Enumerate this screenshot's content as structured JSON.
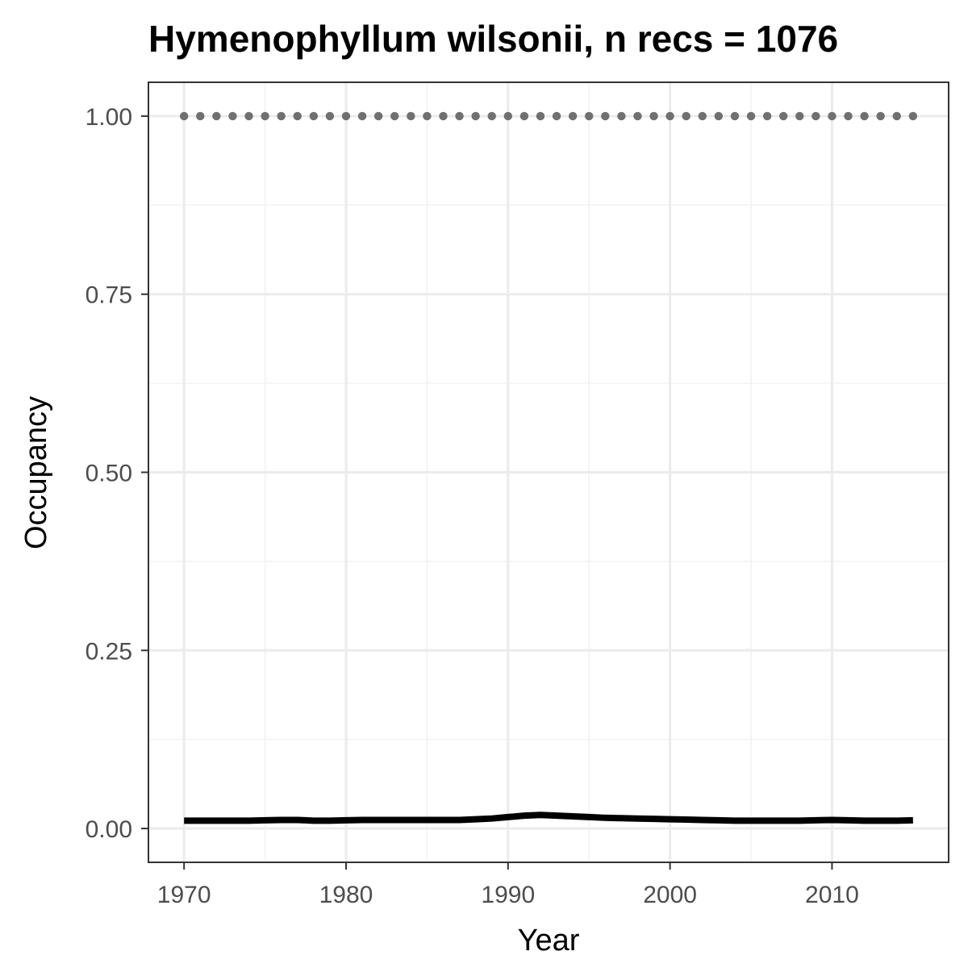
{
  "chart_data": {
    "type": "line",
    "title": "Hymenophyllum wilsonii, n recs = 1076",
    "xlabel": "Year",
    "ylabel": "Occupancy",
    "xlim": [
      1967.8,
      2017.2
    ],
    "ylim": [
      -0.0475,
      1.0475
    ],
    "x_ticks": [
      1970,
      1980,
      1990,
      2000,
      2010
    ],
    "y_ticks": [
      0.0,
      0.25,
      0.5,
      0.75,
      1.0
    ],
    "x_tick_labels": [
      "1970",
      "1980",
      "1990",
      "2000",
      "2010"
    ],
    "y_tick_labels": [
      "0.00",
      "0.25",
      "0.50",
      "0.75",
      "1.00"
    ],
    "grid": true,
    "series": [
      {
        "style": "solid",
        "color": "#000000",
        "x": [
          1970,
          1971,
          1972,
          1973,
          1974,
          1975,
          1976,
          1977,
          1978,
          1979,
          1980,
          1981,
          1982,
          1983,
          1984,
          1985,
          1986,
          1987,
          1988,
          1989,
          1990,
          1991,
          1992,
          1993,
          1994,
          1995,
          1996,
          1997,
          1998,
          1999,
          2000,
          2001,
          2002,
          2003,
          2004,
          2005,
          2006,
          2007,
          2008,
          2009,
          2010,
          2011,
          2012,
          2013,
          2014,
          2015
        ],
        "y": [
          0.011,
          0.011,
          0.011,
          0.011,
          0.011,
          0.0115,
          0.012,
          0.012,
          0.011,
          0.011,
          0.0115,
          0.012,
          0.012,
          0.012,
          0.012,
          0.012,
          0.012,
          0.012,
          0.013,
          0.014,
          0.016,
          0.018,
          0.019,
          0.018,
          0.017,
          0.016,
          0.015,
          0.0145,
          0.014,
          0.0135,
          0.013,
          0.0125,
          0.012,
          0.0115,
          0.011,
          0.011,
          0.011,
          0.011,
          0.011,
          0.0115,
          0.012,
          0.0115,
          0.011,
          0.011,
          0.011,
          0.0115
        ]
      },
      {
        "style": "dotted",
        "color": "#707070",
        "x": [
          1970,
          1971,
          1972,
          1973,
          1974,
          1975,
          1976,
          1977,
          1978,
          1979,
          1980,
          1981,
          1982,
          1983,
          1984,
          1985,
          1986,
          1987,
          1988,
          1989,
          1990,
          1991,
          1992,
          1993,
          1994,
          1995,
          1996,
          1997,
          1998,
          1999,
          2000,
          2001,
          2002,
          2003,
          2004,
          2005,
          2006,
          2007,
          2008,
          2009,
          2010,
          2011,
          2012,
          2013,
          2014,
          2015
        ],
        "y": [
          1,
          1,
          1,
          1,
          1,
          1,
          1,
          1,
          1,
          1,
          1,
          1,
          1,
          1,
          1,
          1,
          1,
          1,
          1,
          1,
          1,
          1,
          1,
          1,
          1,
          1,
          1,
          1,
          1,
          1,
          1,
          1,
          1,
          1,
          1,
          1,
          1,
          1,
          1,
          1,
          1,
          1,
          1,
          1,
          1,
          1
        ]
      }
    ],
    "colors": {
      "panel_border": "#333333",
      "grid_major": "#ebebeb",
      "grid_minor": "#f2f2f2",
      "tick_text": "#4d4d4d",
      "uncertainty_band": "#d9d9d9"
    }
  }
}
